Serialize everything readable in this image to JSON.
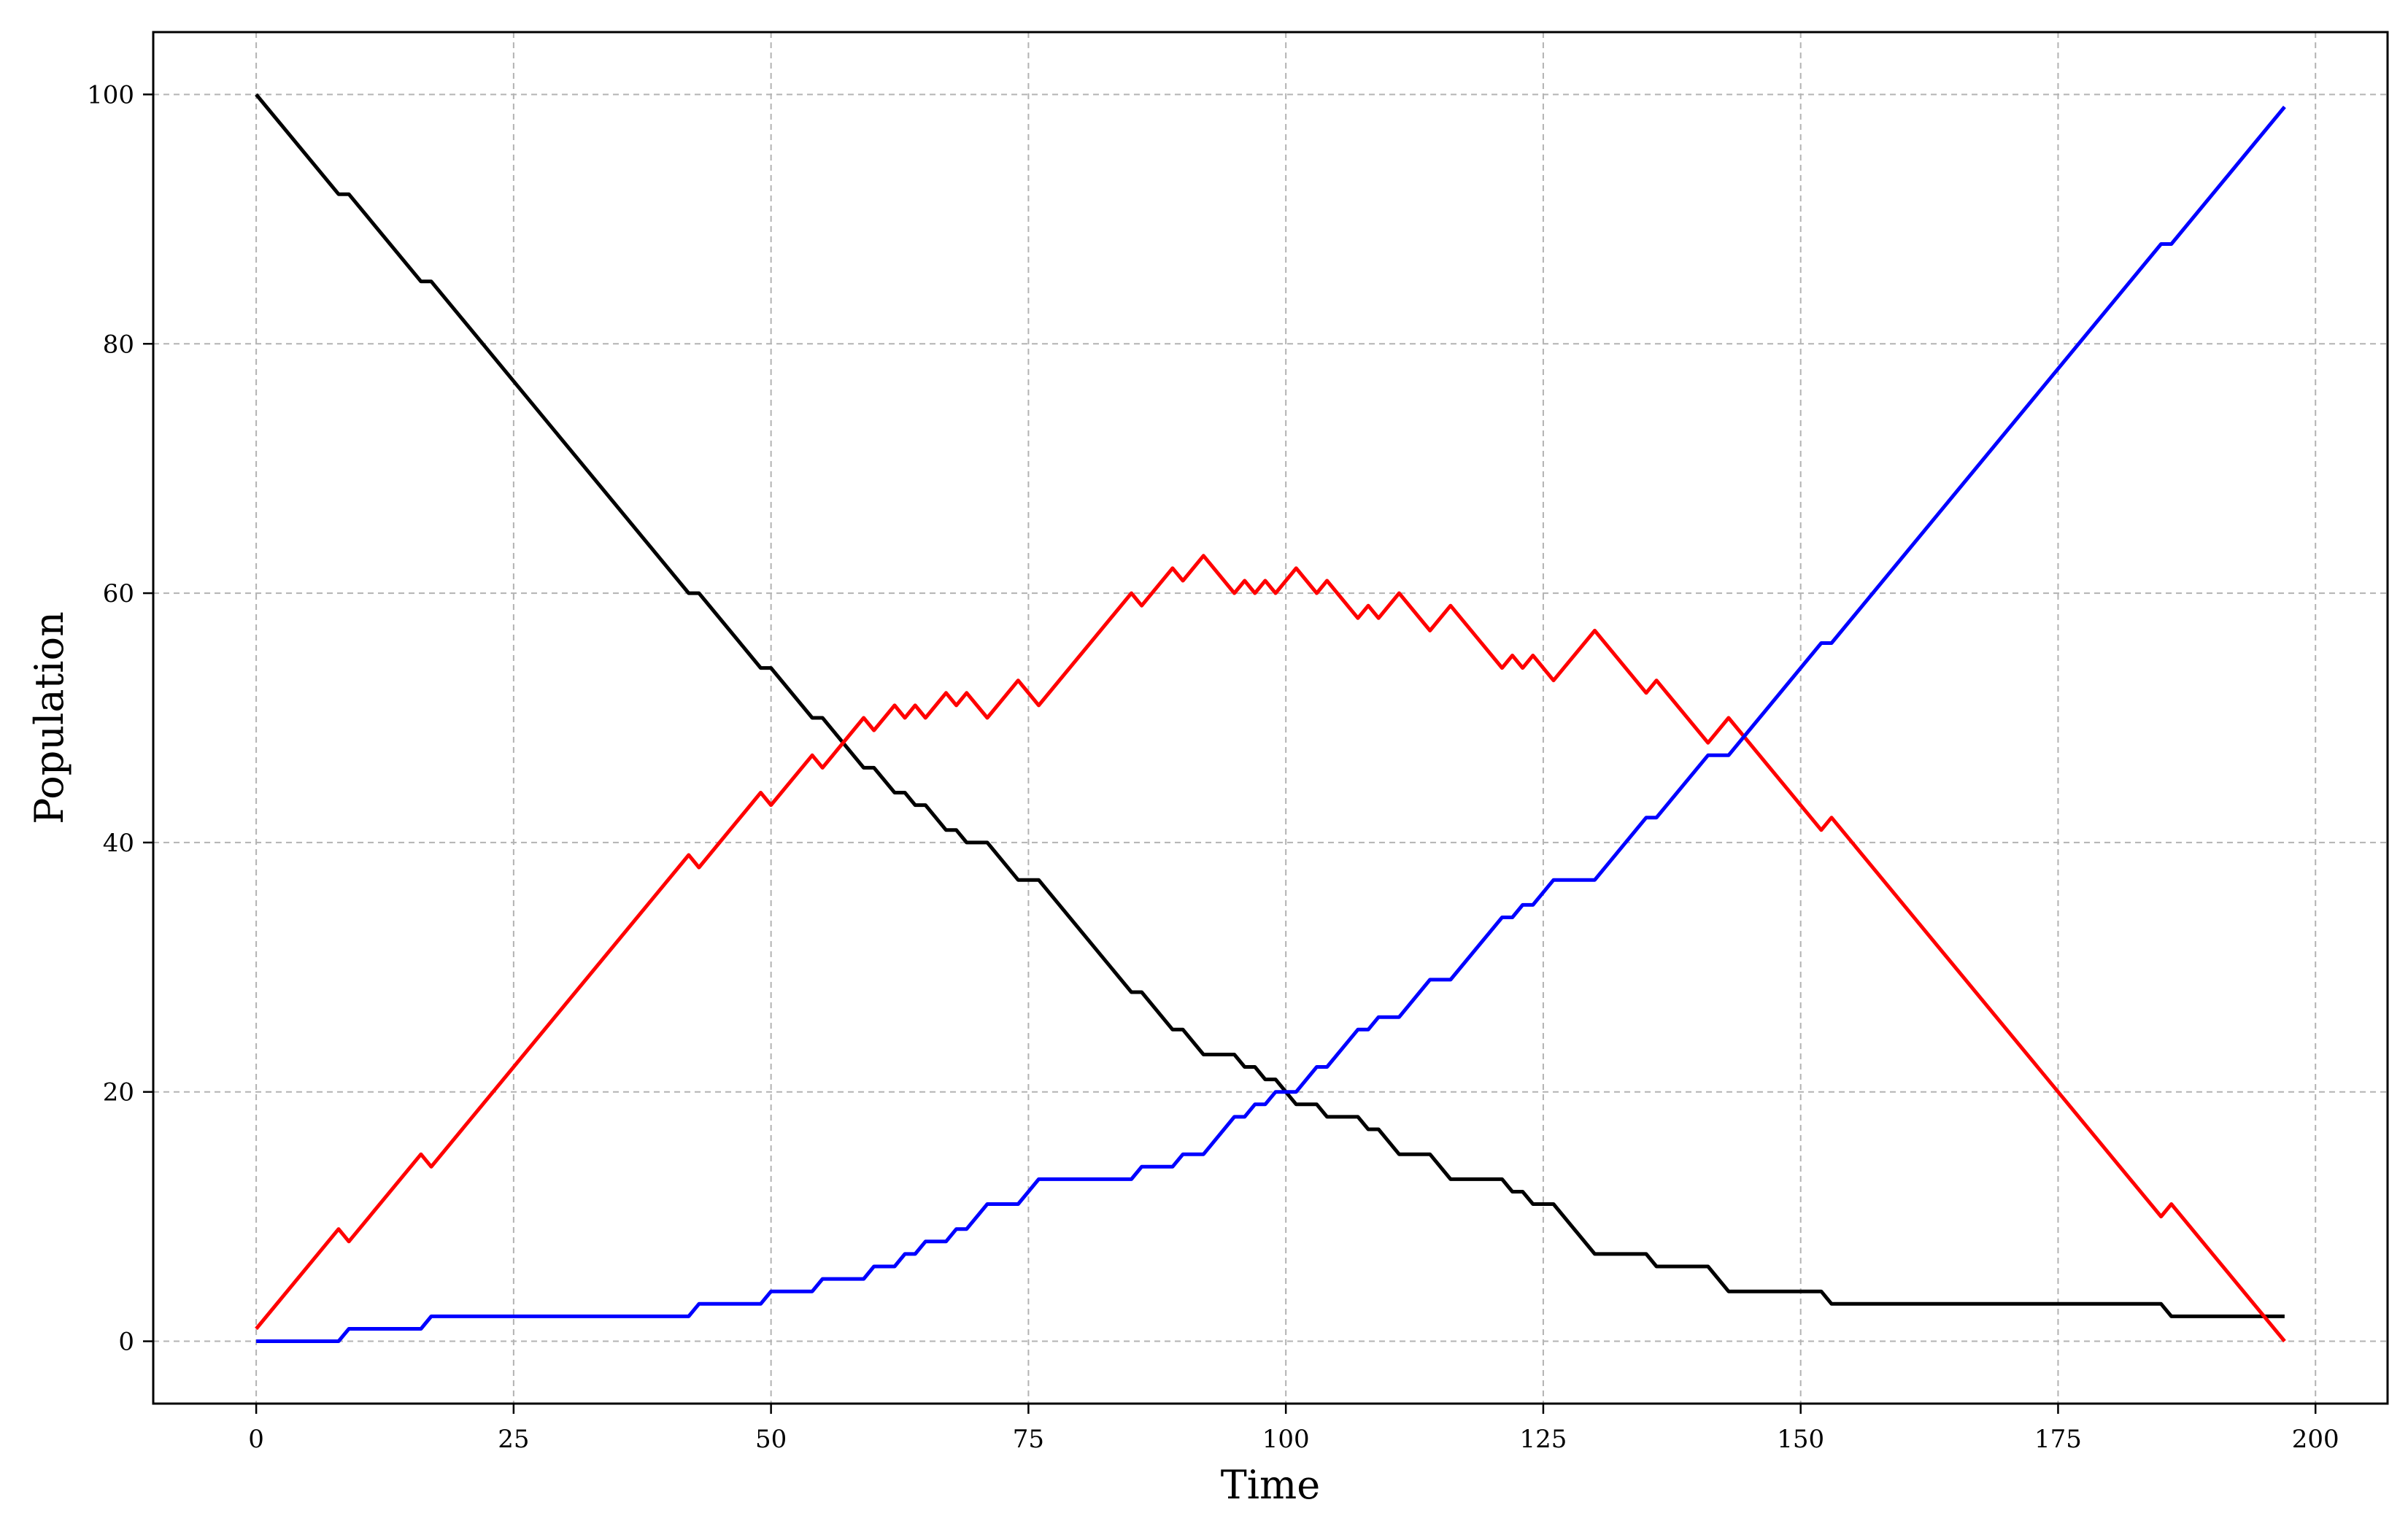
{
  "chart_data": {
    "type": "line",
    "title": "",
    "xlabel": "Time",
    "ylabel": "Population",
    "xlim": [
      -10,
      207
    ],
    "ylim": [
      -5,
      105
    ],
    "x_ticks": [
      0,
      25,
      50,
      75,
      100,
      125,
      150,
      175,
      200
    ],
    "y_ticks": [
      0,
      20,
      40,
      60,
      80,
      100
    ],
    "grid": true,
    "legend": "none",
    "series": [
      {
        "color": "#000000",
        "points": [
          [
            0,
            100
          ],
          [
            8,
            92
          ],
          [
            9,
            92
          ],
          [
            16,
            85
          ],
          [
            17,
            85
          ],
          [
            42,
            60
          ],
          [
            43,
            60
          ],
          [
            49,
            54
          ],
          [
            50,
            54
          ],
          [
            54,
            50
          ],
          [
            55,
            50
          ],
          [
            59,
            46
          ],
          [
            60,
            46
          ],
          [
            62,
            44
          ],
          [
            63,
            44
          ],
          [
            64,
            43
          ],
          [
            65,
            43
          ],
          [
            67,
            41
          ],
          [
            68,
            41
          ],
          [
            69,
            40
          ],
          [
            71,
            40
          ],
          [
            74,
            37
          ],
          [
            76,
            37
          ],
          [
            85,
            28
          ],
          [
            86,
            28
          ],
          [
            89,
            25
          ],
          [
            90,
            25
          ],
          [
            92,
            23
          ],
          [
            95,
            23
          ],
          [
            96,
            22
          ],
          [
            97,
            22
          ],
          [
            98,
            21
          ],
          [
            99,
            21
          ],
          [
            101,
            19
          ],
          [
            103,
            19
          ],
          [
            104,
            18
          ],
          [
            107,
            18
          ],
          [
            108,
            17
          ],
          [
            109,
            17
          ],
          [
            111,
            15
          ],
          [
            114,
            15
          ],
          [
            116,
            13
          ],
          [
            121,
            13
          ],
          [
            122,
            12
          ],
          [
            123,
            12
          ],
          [
            124,
            11
          ],
          [
            126,
            11
          ],
          [
            130,
            7
          ],
          [
            135,
            7
          ],
          [
            136,
            6
          ],
          [
            141,
            6
          ],
          [
            143,
            4
          ],
          [
            152,
            4
          ],
          [
            153,
            3
          ],
          [
            185,
            3
          ],
          [
            186,
            2
          ],
          [
            197,
            2
          ]
        ]
      },
      {
        "color": "#ff0000",
        "points": [
          [
            0,
            1
          ],
          [
            8,
            9
          ],
          [
            9,
            8
          ],
          [
            16,
            15
          ],
          [
            17,
            14
          ],
          [
            42,
            39
          ],
          [
            43,
            38
          ],
          [
            49,
            44
          ],
          [
            50,
            43
          ],
          [
            54,
            47
          ],
          [
            55,
            46
          ],
          [
            59,
            50
          ],
          [
            60,
            49
          ],
          [
            62,
            51
          ],
          [
            63,
            50
          ],
          [
            64,
            51
          ],
          [
            65,
            50
          ],
          [
            67,
            52
          ],
          [
            68,
            51
          ],
          [
            69,
            52
          ],
          [
            71,
            50
          ],
          [
            74,
            53
          ],
          [
            76,
            51
          ],
          [
            85,
            60
          ],
          [
            86,
            59
          ],
          [
            89,
            62
          ],
          [
            90,
            61
          ],
          [
            92,
            63
          ],
          [
            95,
            60
          ],
          [
            96,
            61
          ],
          [
            97,
            60
          ],
          [
            98,
            61
          ],
          [
            99,
            60
          ],
          [
            101,
            62
          ],
          [
            103,
            60
          ],
          [
            104,
            61
          ],
          [
            107,
            58
          ],
          [
            108,
            59
          ],
          [
            109,
            58
          ],
          [
            111,
            60
          ],
          [
            114,
            57
          ],
          [
            116,
            59
          ],
          [
            121,
            54
          ],
          [
            122,
            55
          ],
          [
            123,
            54
          ],
          [
            124,
            55
          ],
          [
            126,
            53
          ],
          [
            130,
            57
          ],
          [
            135,
            52
          ],
          [
            136,
            53
          ],
          [
            141,
            48
          ],
          [
            143,
            50
          ],
          [
            152,
            41
          ],
          [
            153,
            42
          ],
          [
            185,
            10
          ],
          [
            186,
            11
          ],
          [
            197,
            0
          ]
        ]
      },
      {
        "color": "#0000ff",
        "points": [
          [
            0,
            0
          ],
          [
            8,
            0
          ],
          [
            9,
            1
          ],
          [
            16,
            1
          ],
          [
            17,
            2
          ],
          [
            42,
            2
          ],
          [
            43,
            3
          ],
          [
            49,
            3
          ],
          [
            50,
            4
          ],
          [
            54,
            4
          ],
          [
            55,
            5
          ],
          [
            59,
            5
          ],
          [
            60,
            6
          ],
          [
            62,
            6
          ],
          [
            63,
            7
          ],
          [
            64,
            7
          ],
          [
            65,
            8
          ],
          [
            67,
            8
          ],
          [
            68,
            9
          ],
          [
            69,
            9
          ],
          [
            71,
            11
          ],
          [
            74,
            11
          ],
          [
            76,
            13
          ],
          [
            85,
            13
          ],
          [
            86,
            14
          ],
          [
            89,
            14
          ],
          [
            90,
            15
          ],
          [
            92,
            15
          ],
          [
            95,
            18
          ],
          [
            96,
            18
          ],
          [
            97,
            19
          ],
          [
            98,
            19
          ],
          [
            99,
            20
          ],
          [
            101,
            20
          ],
          [
            103,
            22
          ],
          [
            104,
            22
          ],
          [
            107,
            25
          ],
          [
            108,
            25
          ],
          [
            109,
            26
          ],
          [
            111,
            26
          ],
          [
            114,
            29
          ],
          [
            116,
            29
          ],
          [
            121,
            34
          ],
          [
            122,
            34
          ],
          [
            123,
            35
          ],
          [
            124,
            35
          ],
          [
            126,
            37
          ],
          [
            130,
            37
          ],
          [
            135,
            42
          ],
          [
            136,
            42
          ],
          [
            141,
            47
          ],
          [
            143,
            47
          ],
          [
            152,
            56
          ],
          [
            153,
            56
          ],
          [
            185,
            88
          ],
          [
            186,
            88
          ],
          [
            197,
            99
          ]
        ]
      }
    ]
  }
}
